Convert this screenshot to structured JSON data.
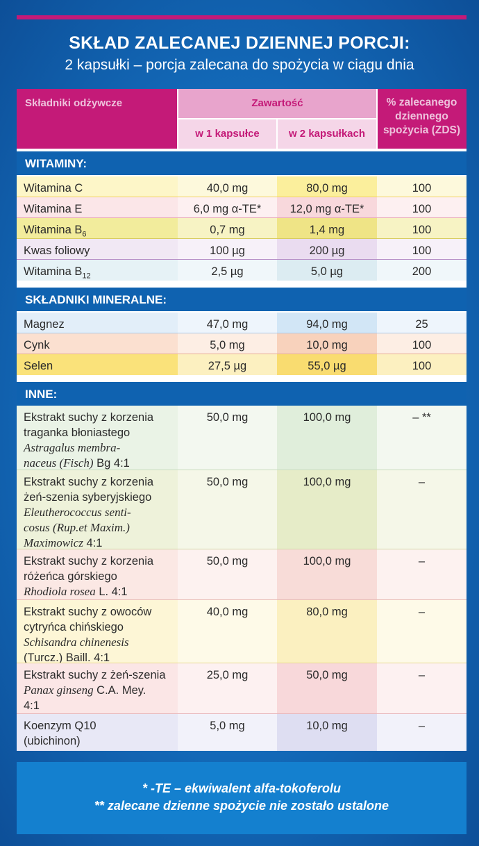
{
  "header": {
    "title": "SKŁAD ZALECANEJ DZIENNEJ PORCJI:",
    "subtitle": "2 kapsułki – porcja zalecana do spożycia w ciągu dnia"
  },
  "table_header": {
    "col_nutrients": "Składniki odżywcze",
    "col_content": "Zawartość",
    "col_one": "w 1 kapsułce",
    "col_two": "w 2 kapsułkach",
    "col_rdi_1": "% zalecanego",
    "col_rdi_2": "dziennego",
    "col_rdi_3": "spożycia (ZDS)"
  },
  "sections": {
    "vitamins": "WITAMINY:",
    "minerals": "SKŁADNIKI MINERALNE:",
    "other": "INNE:"
  },
  "vitamins": [
    {
      "name": "Witamina C",
      "one": "40,0 mg",
      "two": "80,0 mg",
      "rdi": "100"
    },
    {
      "name": "Witamina E",
      "one": "6,0 mg α-TE*",
      "two": "12,0 mg α-TE*",
      "rdi": "100"
    },
    {
      "name": "Witamina B",
      "sub": "6",
      "one": "0,7 mg",
      "two": "1,4 mg",
      "rdi": "100"
    },
    {
      "name": "Kwas foliowy",
      "one": "100 µg",
      "two": "200 µg",
      "rdi": "100"
    },
    {
      "name": "Witamina B",
      "sub": "12",
      "one": "2,5 µg",
      "two": "5,0 µg",
      "rdi": "200"
    }
  ],
  "minerals": [
    {
      "name": "Magnez",
      "one": "47,0 mg",
      "two": "94,0 mg",
      "rdi": "25"
    },
    {
      "name": "Cynk",
      "one": "5,0 mg",
      "two": "10,0 mg",
      "rdi": "100"
    },
    {
      "name": "Selen",
      "one": "27,5 µg",
      "two": "55,0 µg",
      "rdi": "100"
    }
  ],
  "other": [
    {
      "l1": "Ekstrakt suchy z korzenia",
      "l2": "traganka błoniastego",
      "l3": "Astragalus membra-",
      "l4a": "naceus (Fisch)",
      "l4b": " Bg 4:1",
      "one": "50,0 mg",
      "two": "100,0 mg",
      "rdi": "– **"
    },
    {
      "l1": "Ekstrakt suchy z korzenia",
      "l2": "żeń-szenia syberyjskiego",
      "l3": "Eleutherococcus senti-",
      "l4": "cosus (Rup.et Maxim.)",
      "l5a": "Maximowicz",
      "l5b": " 4:1",
      "one": "50,0 mg",
      "two": "100,0 mg",
      "rdi": "–"
    },
    {
      "l1": "Ekstrakt suchy z korzenia",
      "l2": "różeńca górskiego",
      "l3a": "Rhodiola rosea",
      "l3b": " L. 4:1",
      "one": "50,0 mg",
      "two": "100,0 mg",
      "rdi": "–"
    },
    {
      "l1": "Ekstrakt suchy z owoców",
      "l2": "cytryńca chińskiego",
      "l3": "Schisandra chinenesis",
      "l4": "(Turcz.) Baill. 4:1",
      "one": "40,0 mg",
      "two": "80,0 mg",
      "rdi": "–"
    },
    {
      "l1": "Ekstrakt suchy z żeń-szenia",
      "l2a": "Panax ginseng",
      "l2b": " C.A. Mey.",
      "l3": "4:1",
      "one": "25,0 mg",
      "two": "50,0 mg",
      "rdi": "–"
    },
    {
      "l1": "Koenzym Q10",
      "l2": "(ubichinon)",
      "one": "5,0 mg",
      "two": "10,0 mg",
      "rdi": "–"
    }
  ],
  "footnotes": {
    "line1": "*   -TE – ekwiwalent alfa-tokoferolu",
    "line2": "** zalecane dzienne spożycie nie zostało ustalone"
  },
  "colors": {
    "magenta": "#c41a78",
    "blue": "#0f62b0",
    "row_yellow": "#fdf6c8",
    "row_pink": "#fbe6e8",
    "row_lime": "#f4f0b4",
    "row_lavender": "#f1e8f4",
    "row_cyan": "#e6f2f6"
  }
}
